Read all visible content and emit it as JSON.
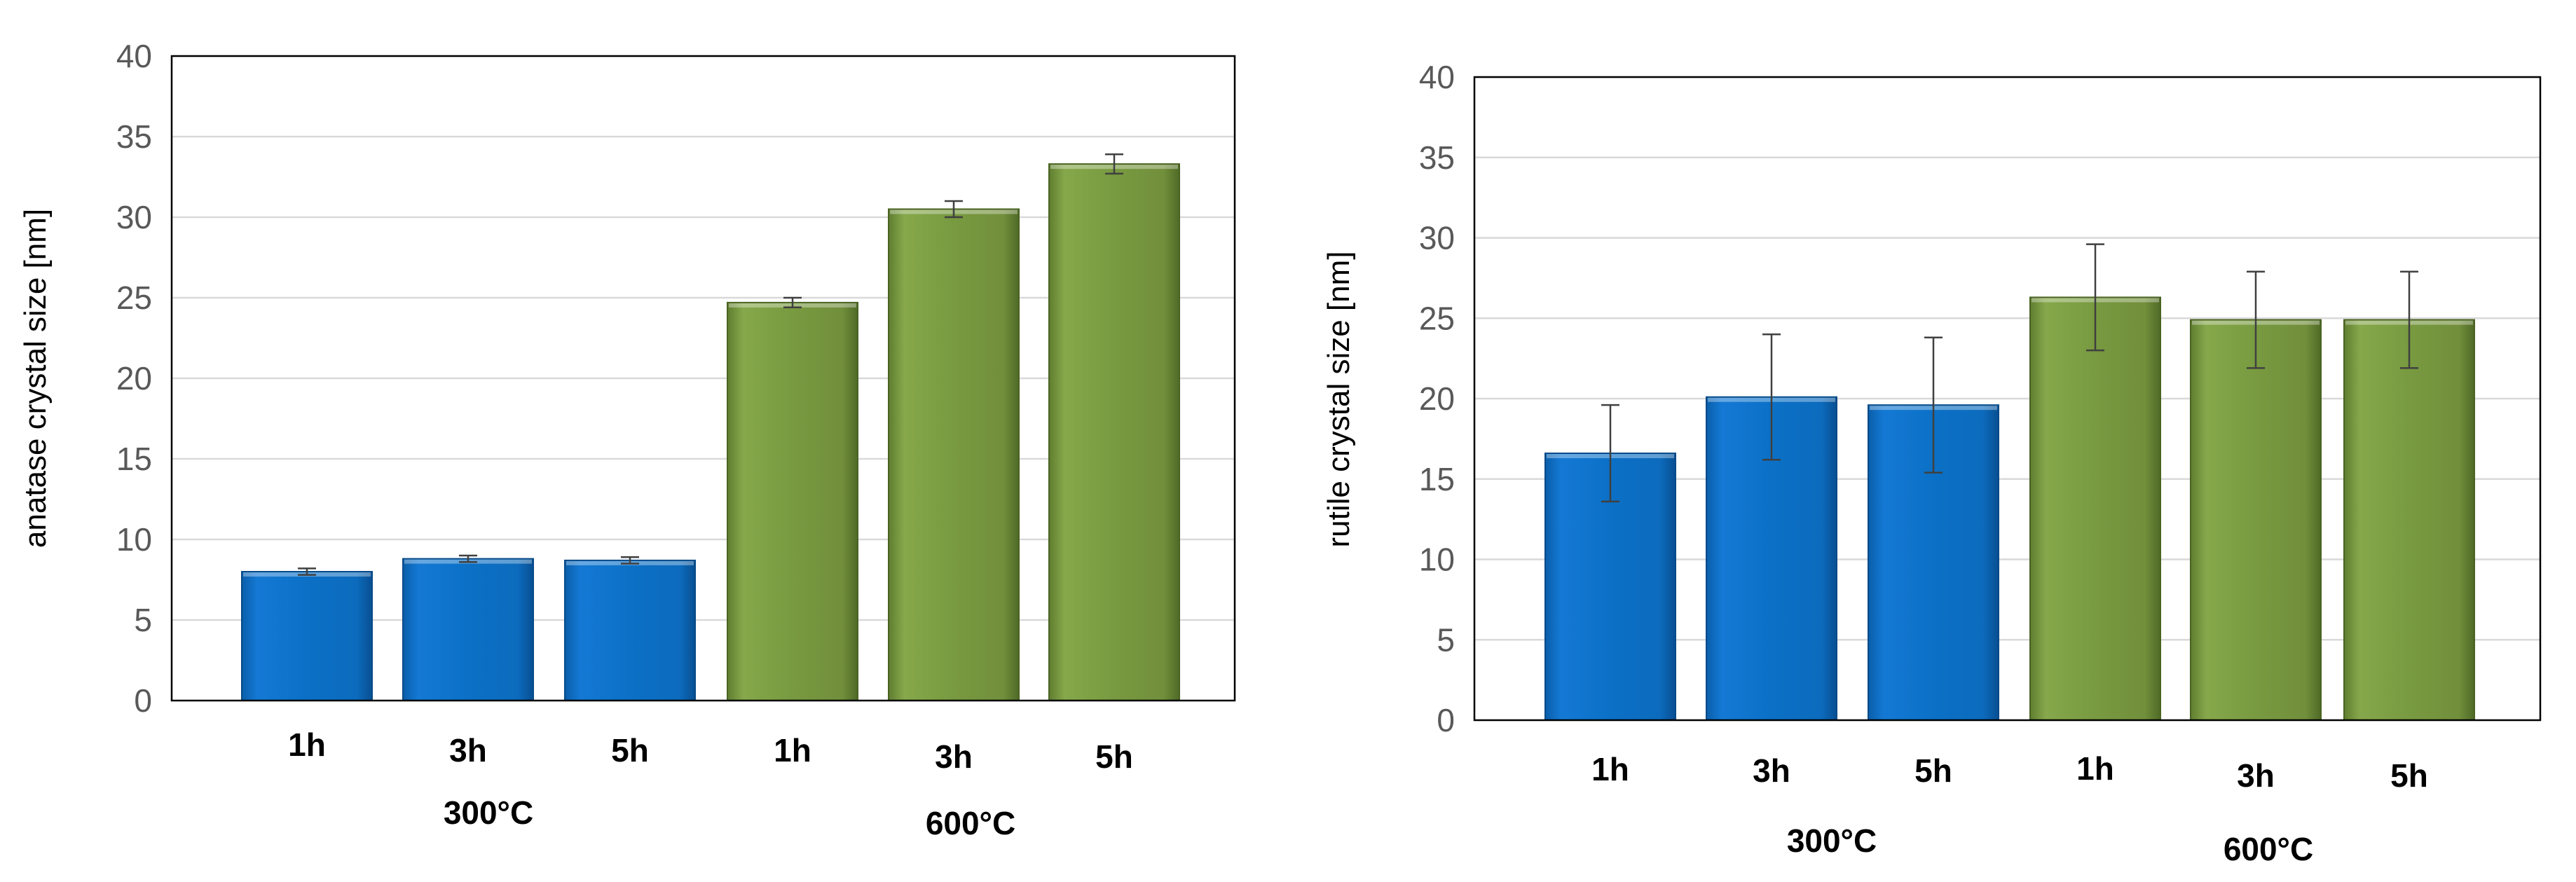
{
  "colors": {
    "blue_series": "#0a6fc4",
    "green_series": "#77983f",
    "gridline": "#d9d9d9",
    "axis": "#000000"
  },
  "chart_data": [
    {
      "type": "bar",
      "ylabel": "anatase crystal size [nm]",
      "ylim": [
        0,
        40
      ],
      "yticks": [
        0,
        5,
        10,
        15,
        20,
        25,
        30,
        35,
        40
      ],
      "grid": true,
      "categories": [
        "1h",
        "3h",
        "5h",
        "1h",
        "3h",
        "5h"
      ],
      "groups": [
        {
          "label": "300°C",
          "categories": [
            "1h",
            "3h",
            "5h"
          ]
        },
        {
          "label": "600°C",
          "categories": [
            "1h",
            "3h",
            "5h"
          ]
        }
      ],
      "values": [
        8.0,
        8.8,
        8.7,
        24.7,
        30.5,
        33.3
      ],
      "errors": [
        0.2,
        0.2,
        0.2,
        0.3,
        0.5,
        0.6
      ],
      "bar_colors": [
        "blue",
        "blue",
        "blue",
        "green",
        "green",
        "green"
      ]
    },
    {
      "type": "bar",
      "ylabel": "rutile crystal size [nm]",
      "ylim": [
        0,
        40
      ],
      "yticks": [
        0,
        5,
        10,
        15,
        20,
        25,
        30,
        35,
        40
      ],
      "grid": true,
      "categories": [
        "1h",
        "3h",
        "5h",
        "1h",
        "3h",
        "5h"
      ],
      "groups": [
        {
          "label": "300°C",
          "categories": [
            "1h",
            "3h",
            "5h"
          ]
        },
        {
          "label": "600°C",
          "categories": [
            "1h",
            "3h",
            "5h"
          ]
        }
      ],
      "values": [
        16.6,
        20.1,
        19.6,
        26.3,
        24.9,
        24.9
      ],
      "errors": [
        3.0,
        3.9,
        4.2,
        3.3,
        3.0,
        3.0
      ],
      "bar_colors": [
        "blue",
        "blue",
        "blue",
        "green",
        "green",
        "green"
      ]
    }
  ]
}
